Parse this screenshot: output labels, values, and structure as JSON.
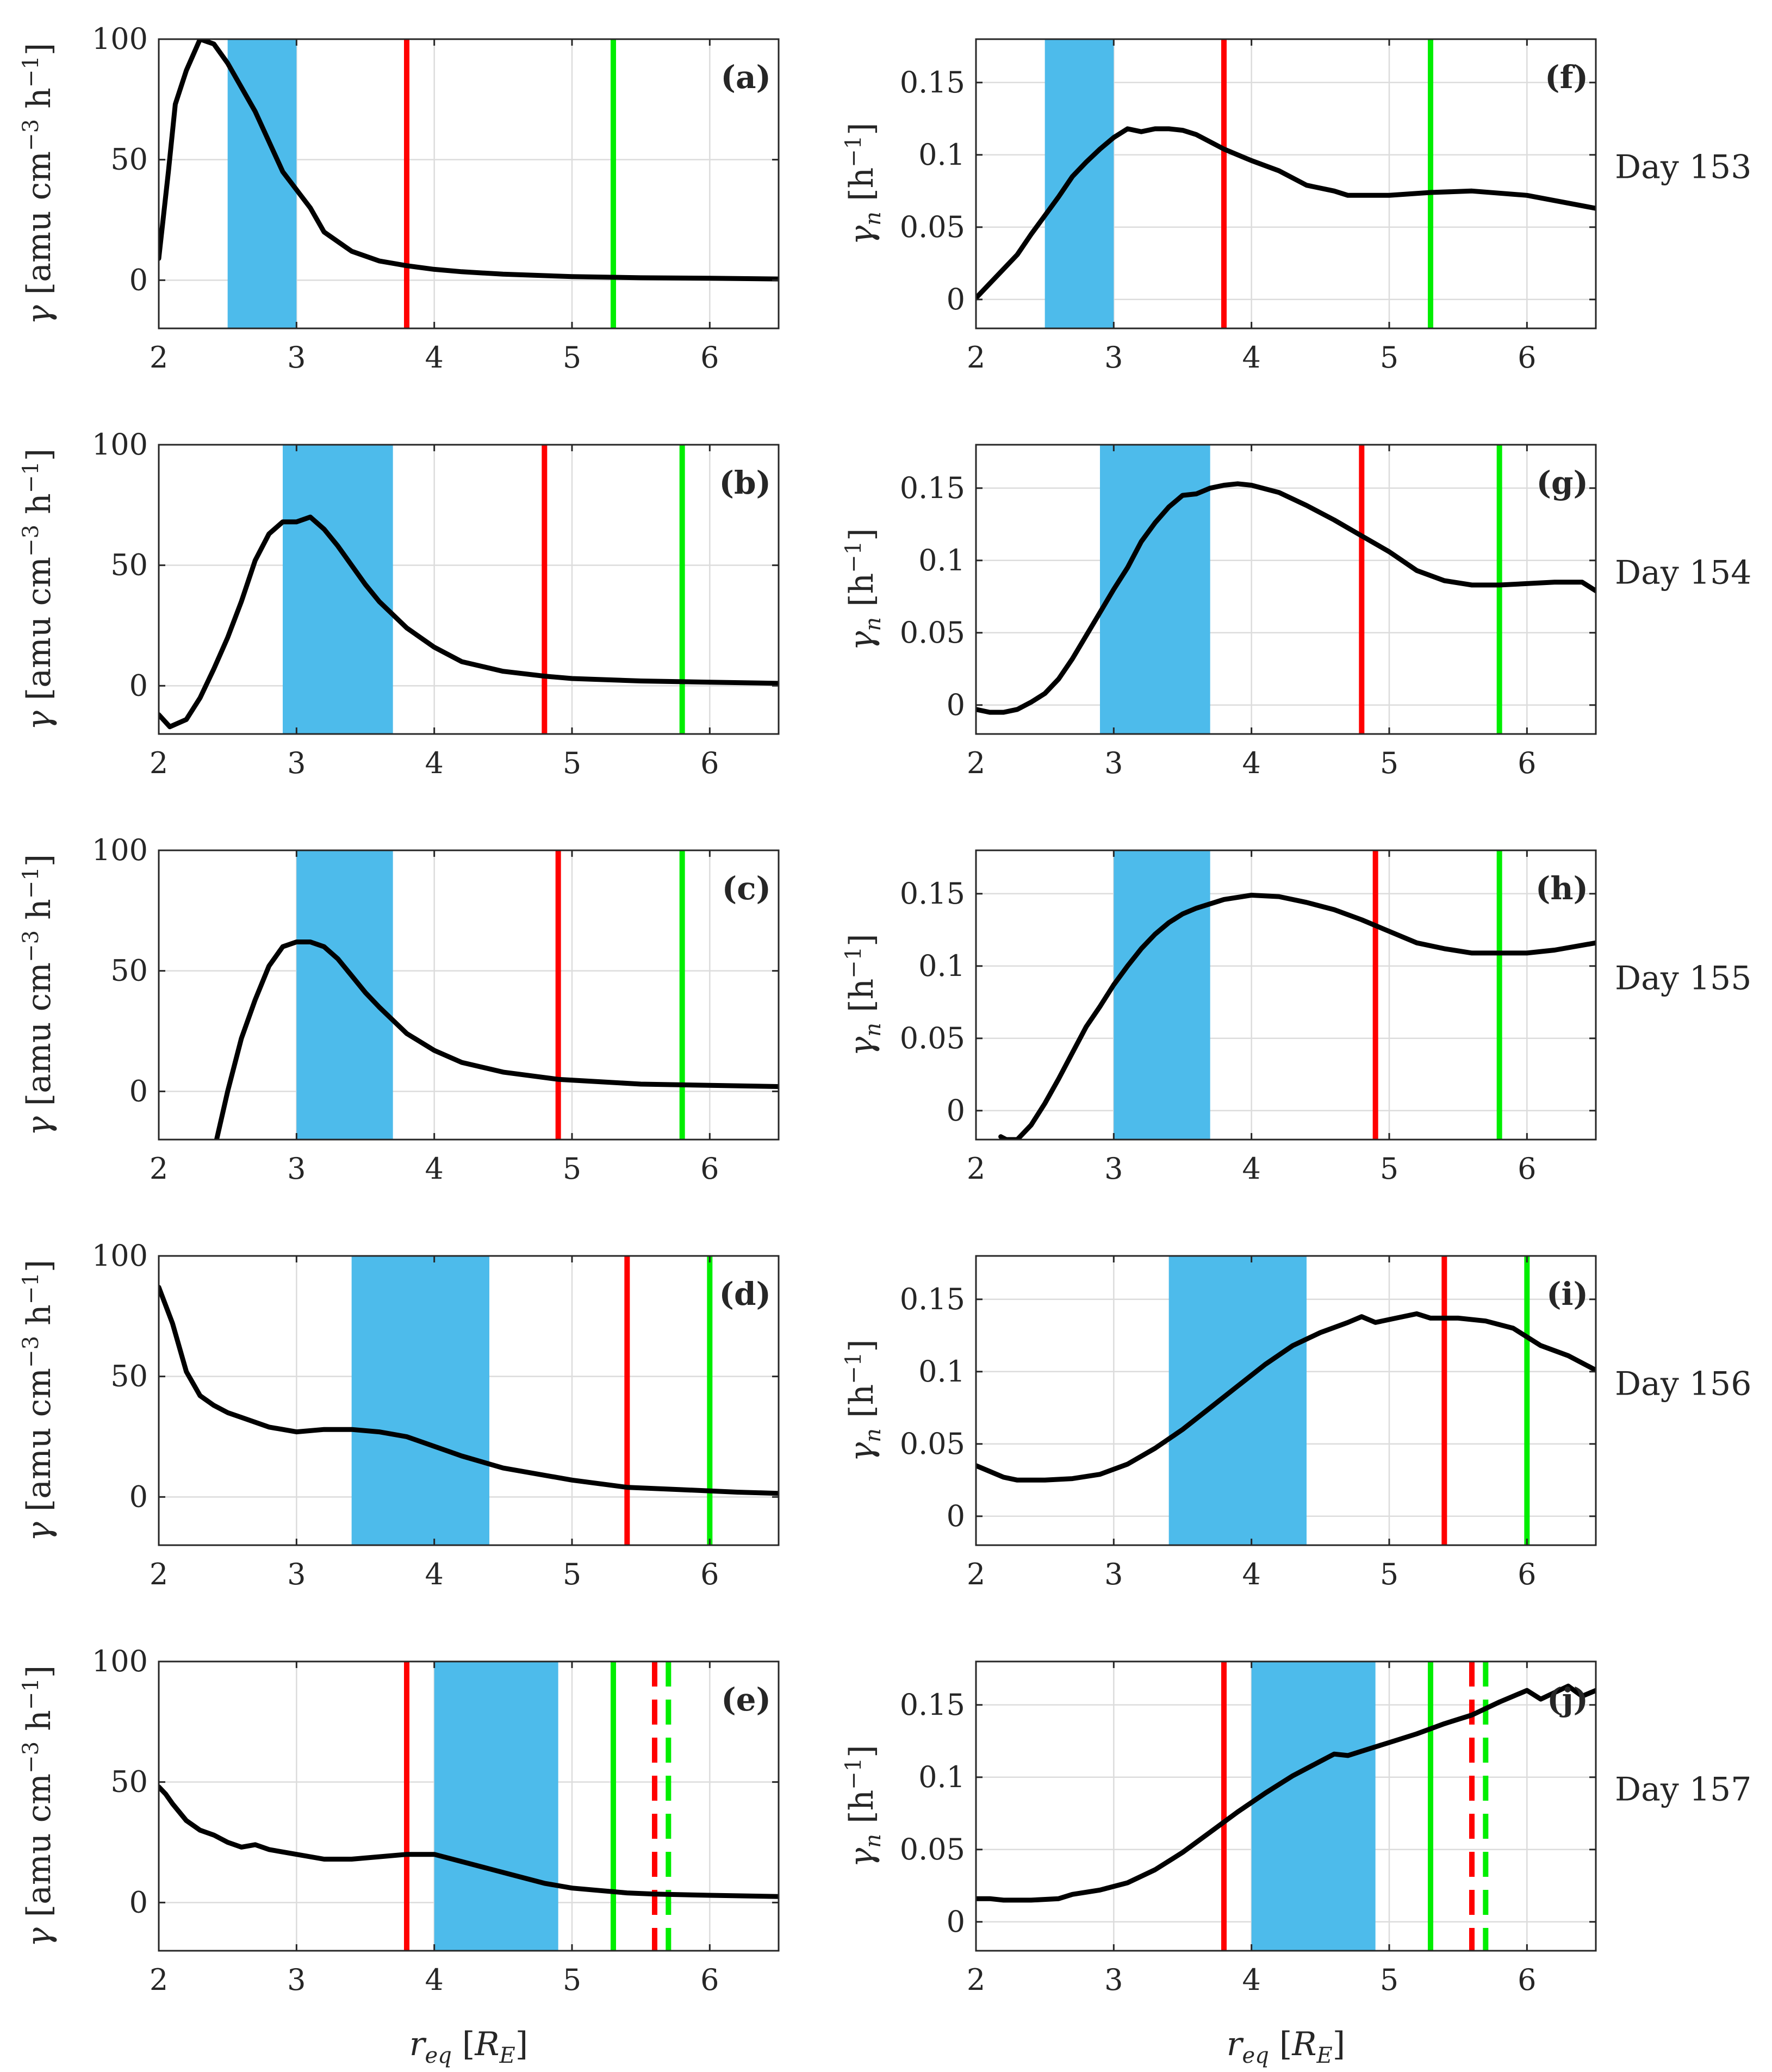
{
  "colors": {
    "curve": "#000000",
    "band": "#4dbbeb",
    "red_line": "#ff0000",
    "green_line": "#00ee00",
    "text": "#262626",
    "grid": "#dcdcdc"
  },
  "xlabel": "r_eq [R_E]",
  "xlabel_parts": {
    "main": "r",
    "sub": "eq",
    "bracket_open": "[",
    "unit_main": "R",
    "unit_sub": "E",
    "bracket_close": "]"
  },
  "ylabel_left": "γ [amu cm⁻³ h⁻¹]",
  "ylabel_left_parts": {
    "symbol": "γ",
    "text": "[amu cm",
    "exp1": "−3",
    "mid": " h",
    "exp2": "−1",
    "close": "]"
  },
  "ylabel_right": "γn [h⁻¹]",
  "ylabel_right_parts": {
    "symbol": "γ",
    "sub": "n",
    "text": "[h",
    "exp": "−1",
    "close": "]"
  },
  "chart_data": [
    {
      "id": "a",
      "panel_label": "(a)",
      "type": "line",
      "column": "left",
      "title": "",
      "xlim": [
        2,
        6.5
      ],
      "ylim": [
        -20,
        100
      ],
      "xticks": [
        2,
        3,
        4,
        5,
        6
      ],
      "yticks": [
        0,
        50,
        100
      ],
      "ytick_labels": [
        "0",
        "50",
        "100"
      ],
      "band": [
        2.5,
        3.0
      ],
      "red_lines": [
        {
          "x": 3.8,
          "style": "solid"
        }
      ],
      "green_lines": [
        {
          "x": 5.3,
          "style": "solid"
        }
      ],
      "x": [
        2.0,
        2.07,
        2.12,
        2.2,
        2.3,
        2.4,
        2.5,
        2.7,
        2.9,
        3.1,
        3.2,
        3.4,
        3.6,
        3.8,
        4.0,
        4.2,
        4.5,
        5.0,
        5.5,
        6.0,
        6.5
      ],
      "y": [
        9,
        45,
        73,
        87,
        100,
        98,
        90,
        70,
        45,
        30,
        20,
        12,
        8,
        6,
        4.5,
        3.5,
        2.5,
        1.5,
        1,
        0.8,
        0.5
      ]
    },
    {
      "id": "b",
      "panel_label": "(b)",
      "type": "line",
      "column": "left",
      "title": "",
      "xlim": [
        2,
        6.5
      ],
      "ylim": [
        -20,
        100
      ],
      "xticks": [
        2,
        3,
        4,
        5,
        6
      ],
      "yticks": [
        0,
        50,
        100
      ],
      "ytick_labels": [
        "0",
        "50",
        "100"
      ],
      "band": [
        2.9,
        3.7
      ],
      "red_lines": [
        {
          "x": 4.8,
          "style": "solid"
        }
      ],
      "green_lines": [
        {
          "x": 5.8,
          "style": "solid"
        }
      ],
      "x": [
        2.0,
        2.08,
        2.2,
        2.3,
        2.4,
        2.5,
        2.6,
        2.7,
        2.8,
        2.9,
        3.0,
        3.1,
        3.2,
        3.3,
        3.4,
        3.5,
        3.6,
        3.8,
        4.0,
        4.2,
        4.5,
        4.8,
        5.0,
        5.5,
        6.0,
        6.5
      ],
      "y": [
        -12,
        -17,
        -14,
        -5,
        7,
        20,
        35,
        52,
        63,
        68,
        68,
        70,
        65,
        58,
        50,
        42,
        35,
        24,
        16,
        10,
        6,
        4,
        3,
        2,
        1.5,
        1
      ]
    },
    {
      "id": "c",
      "panel_label": "(c)",
      "type": "line",
      "column": "left",
      "title": "",
      "xlim": [
        2,
        6.5
      ],
      "ylim": [
        -20,
        100
      ],
      "xticks": [
        2,
        3,
        4,
        5,
        6
      ],
      "yticks": [
        0,
        50,
        100
      ],
      "ytick_labels": [
        "0",
        "50",
        "100"
      ],
      "band": [
        3.0,
        3.7
      ],
      "red_lines": [
        {
          "x": 4.9,
          "style": "solid"
        }
      ],
      "green_lines": [
        {
          "x": 5.8,
          "style": "solid"
        }
      ],
      "x": [
        2.42,
        2.5,
        2.6,
        2.7,
        2.8,
        2.9,
        3.0,
        3.1,
        3.2,
        3.3,
        3.4,
        3.5,
        3.6,
        3.8,
        4.0,
        4.2,
        4.5,
        4.9,
        5.2,
        5.5,
        6.0,
        6.5
      ],
      "y": [
        -20,
        0,
        22,
        38,
        52,
        60,
        62,
        62,
        60,
        55,
        48,
        41,
        35,
        24,
        17,
        12,
        8,
        5,
        4,
        3,
        2.5,
        2
      ]
    },
    {
      "id": "d",
      "panel_label": "(d)",
      "type": "line",
      "column": "left",
      "title": "",
      "xlim": [
        2,
        6.5
      ],
      "ylim": [
        -20,
        100
      ],
      "xticks": [
        2,
        3,
        4,
        5,
        6
      ],
      "yticks": [
        0,
        50,
        100
      ],
      "ytick_labels": [
        "0",
        "50",
        "100"
      ],
      "band": [
        3.4,
        4.4
      ],
      "red_lines": [
        {
          "x": 5.4,
          "style": "solid"
        }
      ],
      "green_lines": [
        {
          "x": 6.0,
          "style": "solid"
        }
      ],
      "x": [
        2.0,
        2.1,
        2.2,
        2.3,
        2.4,
        2.5,
        2.6,
        2.8,
        3.0,
        3.2,
        3.4,
        3.6,
        3.8,
        4.0,
        4.2,
        4.5,
        5.0,
        5.4,
        5.8,
        6.2,
        6.5
      ],
      "y": [
        87,
        72,
        52,
        42,
        38,
        35,
        33,
        29,
        27,
        28,
        28,
        27,
        25,
        21,
        17,
        12,
        7,
        4,
        3,
        2,
        1.5
      ]
    },
    {
      "id": "e",
      "panel_label": "(e)",
      "type": "line",
      "column": "left",
      "title": "",
      "xlim": [
        2,
        6.5
      ],
      "ylim": [
        -20,
        100
      ],
      "xticks": [
        2,
        3,
        4,
        5,
        6
      ],
      "yticks": [
        0,
        50,
        100
      ],
      "ytick_labels": [
        "0",
        "50",
        "100"
      ],
      "band": [
        4.0,
        4.9
      ],
      "red_lines": [
        {
          "x": 3.8,
          "style": "solid"
        },
        {
          "x": 5.6,
          "style": "dashed"
        }
      ],
      "green_lines": [
        {
          "x": 5.3,
          "style": "solid"
        },
        {
          "x": 5.7,
          "style": "dashed"
        }
      ],
      "x": [
        2.0,
        2.05,
        2.1,
        2.2,
        2.3,
        2.4,
        2.5,
        2.6,
        2.7,
        2.8,
        3.0,
        3.2,
        3.4,
        3.6,
        3.8,
        4.0,
        4.2,
        4.4,
        4.6,
        4.8,
        5.0,
        5.2,
        5.4,
        5.6,
        6.0,
        6.5
      ],
      "y": [
        48,
        45,
        41,
        34,
        30,
        28,
        25,
        23,
        24,
        22,
        20,
        18,
        18,
        19,
        20,
        20,
        17,
        14,
        11,
        8,
        6,
        5,
        4,
        3.5,
        3,
        2.5
      ]
    },
    {
      "id": "f",
      "panel_label": "(f)",
      "type": "line",
      "column": "right",
      "title": "",
      "xlim": [
        2,
        6.5
      ],
      "ylim": [
        -0.02,
        0.18
      ],
      "xticks": [
        2,
        3,
        4,
        5,
        6
      ],
      "yticks": [
        0,
        0.05,
        0.1,
        0.15
      ],
      "ytick_labels": [
        "0",
        "0.05",
        "0.1",
        "0.15"
      ],
      "day_label": "Day 153",
      "band": [
        2.5,
        3.0
      ],
      "red_lines": [
        {
          "x": 3.8,
          "style": "solid"
        }
      ],
      "green_lines": [
        {
          "x": 5.3,
          "style": "solid"
        }
      ],
      "x": [
        2.0,
        2.1,
        2.2,
        2.3,
        2.4,
        2.5,
        2.6,
        2.7,
        2.8,
        2.9,
        3.0,
        3.1,
        3.2,
        3.3,
        3.4,
        3.5,
        3.6,
        3.8,
        4.0,
        4.2,
        4.4,
        4.6,
        4.7,
        5.0,
        5.3,
        5.6,
        6.0,
        6.5
      ],
      "y": [
        0.001,
        0.011,
        0.021,
        0.031,
        0.045,
        0.058,
        0.071,
        0.085,
        0.095,
        0.104,
        0.112,
        0.118,
        0.116,
        0.118,
        0.118,
        0.117,
        0.114,
        0.104,
        0.096,
        0.089,
        0.079,
        0.075,
        0.072,
        0.072,
        0.074,
        0.075,
        0.072,
        0.063
      ]
    },
    {
      "id": "g",
      "panel_label": "(g)",
      "type": "line",
      "column": "right",
      "title": "",
      "xlim": [
        2,
        6.5
      ],
      "ylim": [
        -0.02,
        0.18
      ],
      "xticks": [
        2,
        3,
        4,
        5,
        6
      ],
      "yticks": [
        0,
        0.05,
        0.1,
        0.15
      ],
      "ytick_labels": [
        "0",
        "0.05",
        "0.1",
        "0.15"
      ],
      "day_label": "Day 154",
      "band": [
        2.9,
        3.7
      ],
      "red_lines": [
        {
          "x": 4.8,
          "style": "solid"
        }
      ],
      "green_lines": [
        {
          "x": 5.8,
          "style": "solid"
        }
      ],
      "x": [
        2.0,
        2.1,
        2.2,
        2.3,
        2.4,
        2.5,
        2.6,
        2.7,
        2.8,
        2.9,
        3.0,
        3.1,
        3.2,
        3.3,
        3.4,
        3.5,
        3.6,
        3.7,
        3.8,
        3.9,
        4.0,
        4.2,
        4.4,
        4.6,
        4.8,
        5.0,
        5.2,
        5.4,
        5.6,
        5.8,
        6.0,
        6.2,
        6.4,
        6.5
      ],
      "y": [
        -0.003,
        -0.005,
        -0.005,
        -0.003,
        0.002,
        0.008,
        0.018,
        0.032,
        0.048,
        0.064,
        0.08,
        0.095,
        0.113,
        0.126,
        0.137,
        0.145,
        0.146,
        0.15,
        0.152,
        0.153,
        0.152,
        0.147,
        0.138,
        0.128,
        0.117,
        0.106,
        0.093,
        0.086,
        0.083,
        0.083,
        0.084,
        0.085,
        0.085,
        0.079
      ]
    },
    {
      "id": "h",
      "panel_label": "(h)",
      "type": "line",
      "column": "right",
      "title": "",
      "xlim": [
        2,
        6.5
      ],
      "ylim": [
        -0.02,
        0.18
      ],
      "xticks": [
        2,
        3,
        4,
        5,
        6
      ],
      "yticks": [
        0,
        0.05,
        0.1,
        0.15
      ],
      "ytick_labels": [
        "0",
        "0.05",
        "0.1",
        "0.15"
      ],
      "day_label": "Day 155",
      "band": [
        3.0,
        3.7
      ],
      "red_lines": [
        {
          "x": 4.9,
          "style": "solid"
        }
      ],
      "green_lines": [
        {
          "x": 5.8,
          "style": "solid"
        }
      ],
      "x": [
        2.18,
        2.22,
        2.3,
        2.4,
        2.5,
        2.6,
        2.7,
        2.8,
        2.9,
        3.0,
        3.1,
        3.2,
        3.3,
        3.4,
        3.5,
        3.6,
        3.8,
        4.0,
        4.2,
        4.4,
        4.6,
        4.8,
        5.0,
        5.2,
        5.4,
        5.6,
        5.8,
        6.0,
        6.2,
        6.5
      ],
      "y": [
        -0.018,
        -0.02,
        -0.02,
        -0.01,
        0.005,
        0.022,
        0.04,
        0.058,
        0.072,
        0.087,
        0.1,
        0.112,
        0.122,
        0.13,
        0.136,
        0.14,
        0.146,
        0.149,
        0.148,
        0.144,
        0.139,
        0.132,
        0.124,
        0.116,
        0.112,
        0.109,
        0.109,
        0.109,
        0.111,
        0.116
      ]
    },
    {
      "id": "i",
      "panel_label": "(i)",
      "type": "line",
      "column": "right",
      "title": "",
      "xlim": [
        2,
        6.5
      ],
      "ylim": [
        -0.02,
        0.18
      ],
      "xticks": [
        2,
        3,
        4,
        5,
        6
      ],
      "yticks": [
        0,
        0.05,
        0.1,
        0.15
      ],
      "ytick_labels": [
        "0",
        "0.05",
        "0.1",
        "0.15"
      ],
      "day_label": "Day 156",
      "band": [
        3.4,
        4.4
      ],
      "red_lines": [
        {
          "x": 5.4,
          "style": "solid"
        }
      ],
      "green_lines": [
        {
          "x": 6.0,
          "style": "solid"
        }
      ],
      "x": [
        2.0,
        2.1,
        2.2,
        2.3,
        2.5,
        2.7,
        2.9,
        3.1,
        3.3,
        3.5,
        3.7,
        3.9,
        4.1,
        4.3,
        4.5,
        4.7,
        4.8,
        4.9,
        5.0,
        5.2,
        5.3,
        5.5,
        5.7,
        5.9,
        6.1,
        6.3,
        6.5
      ],
      "y": [
        0.035,
        0.031,
        0.027,
        0.025,
        0.025,
        0.026,
        0.029,
        0.036,
        0.047,
        0.06,
        0.075,
        0.09,
        0.105,
        0.118,
        0.127,
        0.134,
        0.138,
        0.134,
        0.136,
        0.14,
        0.137,
        0.137,
        0.135,
        0.13,
        0.118,
        0.111,
        0.101
      ]
    },
    {
      "id": "j",
      "panel_label": "(j)",
      "type": "line",
      "column": "right",
      "title": "",
      "xlim": [
        2,
        6.5
      ],
      "ylim": [
        -0.02,
        0.18
      ],
      "xticks": [
        2,
        3,
        4,
        5,
        6
      ],
      "yticks": [
        0,
        0.05,
        0.1,
        0.15
      ],
      "ytick_labels": [
        "0",
        "0.05",
        "0.1",
        "0.15"
      ],
      "day_label": "Day 157",
      "band": [
        4.0,
        4.9
      ],
      "red_lines": [
        {
          "x": 3.8,
          "style": "solid"
        },
        {
          "x": 5.6,
          "style": "dashed"
        }
      ],
      "green_lines": [
        {
          "x": 5.3,
          "style": "solid"
        },
        {
          "x": 5.7,
          "style": "dashed"
        }
      ],
      "x": [
        2.0,
        2.1,
        2.2,
        2.4,
        2.6,
        2.7,
        2.9,
        3.1,
        3.3,
        3.5,
        3.7,
        3.9,
        4.1,
        4.3,
        4.5,
        4.6,
        4.7,
        4.8,
        5.0,
        5.2,
        5.4,
        5.6,
        5.8,
        6.0,
        6.1,
        6.3,
        6.4,
        6.5
      ],
      "y": [
        0.016,
        0.016,
        0.015,
        0.015,
        0.016,
        0.019,
        0.022,
        0.027,
        0.036,
        0.048,
        0.062,
        0.076,
        0.089,
        0.101,
        0.111,
        0.116,
        0.115,
        0.118,
        0.124,
        0.13,
        0.137,
        0.143,
        0.152,
        0.16,
        0.154,
        0.163,
        0.156,
        0.16
      ]
    }
  ]
}
